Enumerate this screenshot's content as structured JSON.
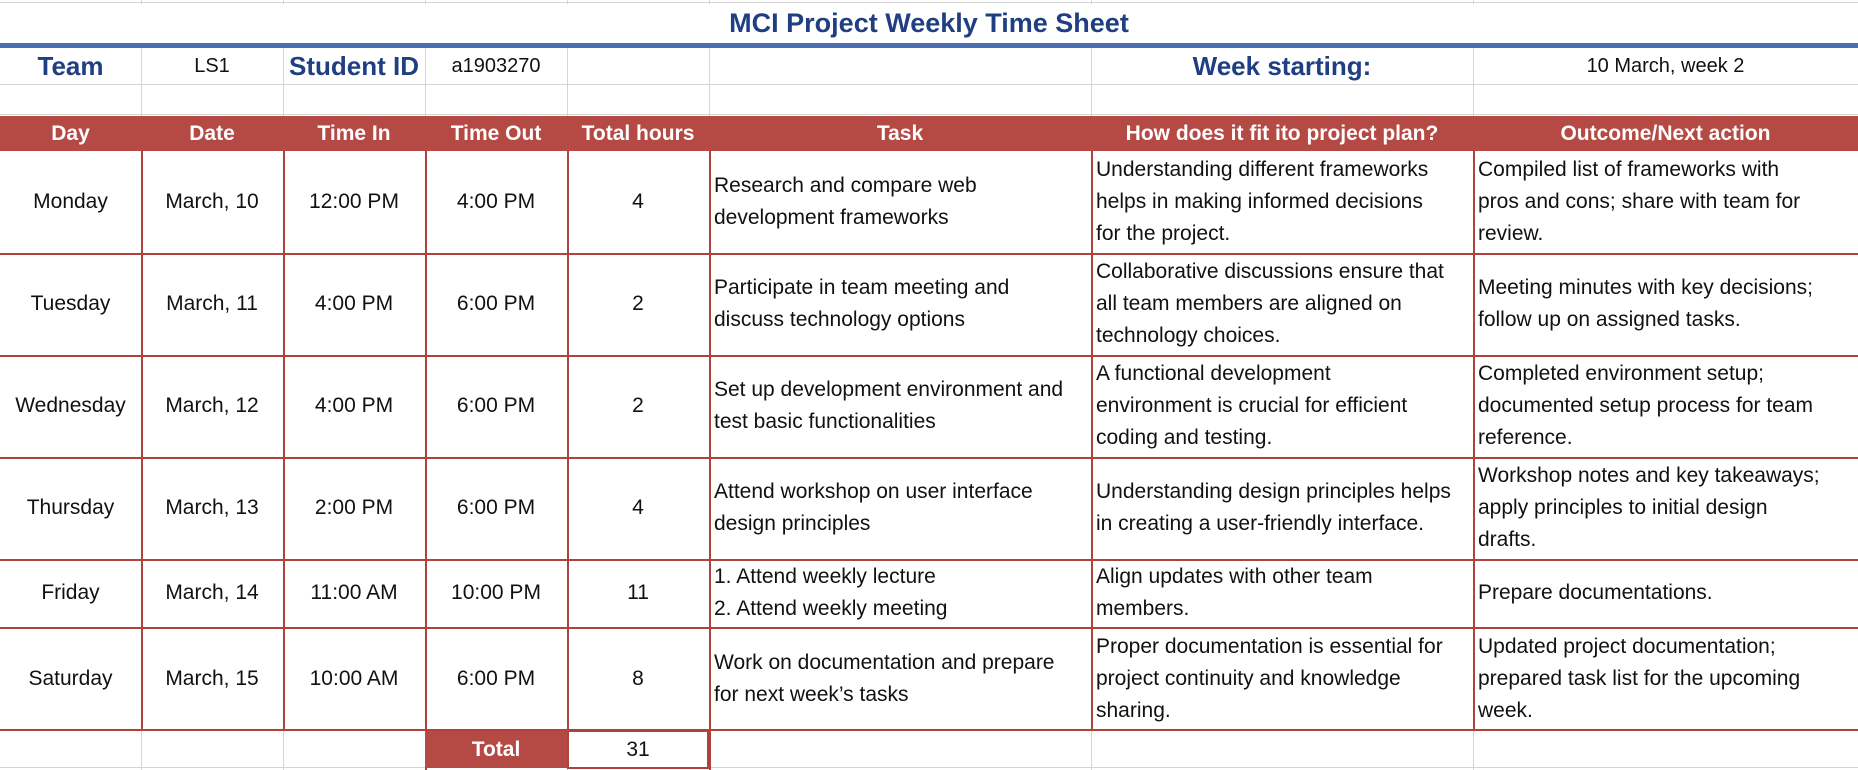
{
  "title": "MCI Project Weekly Time Sheet",
  "info": {
    "team_label": "Team",
    "team_value": "LS1",
    "student_id_label": "Student ID",
    "student_id_value": "a1903270",
    "week_label": "Week starting:",
    "week_value": "10 March, week 2"
  },
  "headers": [
    "Day",
    "Date",
    "Time In",
    "Time Out",
    "Total hours",
    "Task",
    "How does it fit ito project plan?",
    "Outcome/Next action"
  ],
  "rows": [
    {
      "day": "Monday",
      "date": "March, 10",
      "time_in": "12:00 PM",
      "time_out": "4:00 PM",
      "hours": "4",
      "task": [
        "Research and compare web",
        "development frameworks"
      ],
      "fit": [
        "Understanding different frameworks",
        "helps in making informed decisions",
        "for the project."
      ],
      "outcome": [
        "Compiled list of frameworks with",
        "pros and cons; share with team for",
        "review."
      ]
    },
    {
      "day": "Tuesday",
      "date": "March, 11",
      "time_in": "4:00 PM",
      "time_out": "6:00 PM",
      "hours": "2",
      "task": [
        "Participate in team meeting and",
        "discuss technology options"
      ],
      "fit": [
        "Collaborative discussions ensure that",
        "all team members are aligned on",
        "technology choices."
      ],
      "outcome": [
        "Meeting minutes with key decisions;",
        "follow up on assigned tasks."
      ]
    },
    {
      "day": "Wednesday",
      "date": "March, 12",
      "time_in": "4:00 PM",
      "time_out": "6:00 PM",
      "hours": "2",
      "task": [
        "Set up development environment and",
        "test basic functionalities"
      ],
      "fit": [
        "A functional development",
        "environment is crucial for efficient",
        "coding and testing."
      ],
      "outcome": [
        "Completed environment setup;",
        "documented setup process for team",
        "reference."
      ]
    },
    {
      "day": "Thursday",
      "date": "March, 13",
      "time_in": "2:00 PM",
      "time_out": "6:00 PM",
      "hours": "4",
      "task": [
        "Attend workshop on user interface",
        "design principles"
      ],
      "fit": [
        "Understanding design principles helps",
        "in creating a user-friendly interface."
      ],
      "outcome": [
        "Workshop notes and key takeaways;",
        "apply principles to initial design",
        "drafts."
      ]
    },
    {
      "day": "Friday",
      "date": "March, 14",
      "time_in": "11:00 AM",
      "time_out": "10:00 PM",
      "hours": "11",
      "task": [
        "1. Attend weekly lecture",
        "2. Attend weekly meeting"
      ],
      "fit": [
        "Align updates with other team",
        "members."
      ],
      "outcome": [
        "Prepare documentations."
      ]
    },
    {
      "day": "Saturday",
      "date": "March, 15",
      "time_in": "10:00 AM",
      "time_out": "6:00 PM",
      "hours": "8",
      "task": [
        "Work on documentation and prepare",
        "for next week’s tasks"
      ],
      "fit": [
        "Proper documentation is essential for",
        "project continuity and knowledge",
        "sharing."
      ],
      "outcome": [
        "Updated project documentation;",
        "prepared task list for the upcoming",
        "week."
      ]
    }
  ],
  "total": {
    "label": "Total",
    "value": "31"
  }
}
